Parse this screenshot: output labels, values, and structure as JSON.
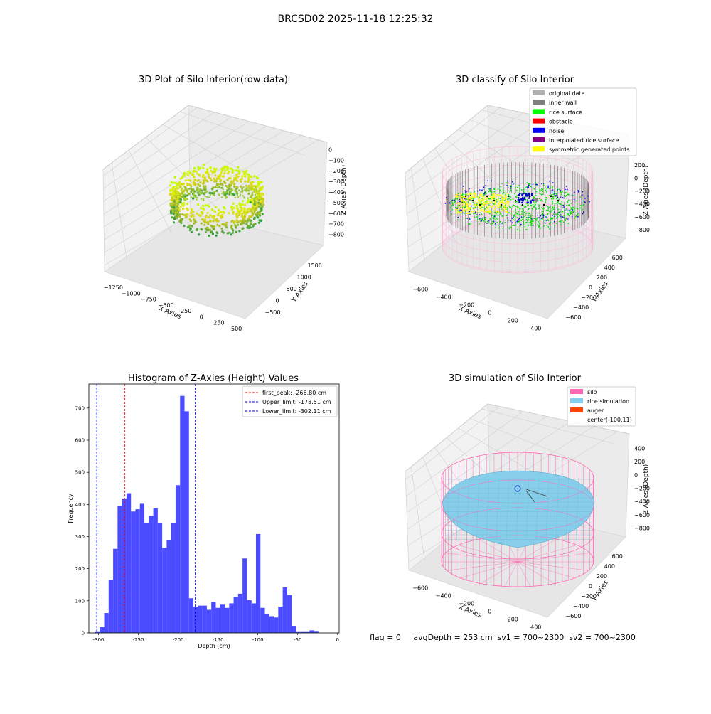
{
  "figure": {
    "suptitle": "BRCSD02 2025-11-18 12:25:32",
    "status_line": "flag = 0     avgDepth = 253 cm  sv1 = 700~2300  sv2 = 700~2300"
  },
  "colors": {
    "hist_bar": "#4b4bff",
    "first_peak_line": "#ff0000",
    "limit_line": "#0000ff",
    "pane": "#f2f2f2",
    "grid": "#c8c8c8",
    "silo": "#ff69b4",
    "rice": "#87ceeb"
  },
  "chart_data": [
    {
      "id": "raw3d",
      "type": "scatter",
      "title": "3D Plot of Silo Interior(row data)",
      "xlabel": "X Axies",
      "ylabel": "Y Axies",
      "zlabel": "Z Axies (Depth)",
      "xticks": [
        "−1250",
        "−1000",
        "−750",
        "−500",
        "−250",
        "0",
        "250",
        "500"
      ],
      "yticks": [
        "−500",
        "0",
        "500",
        "1000",
        "1500"
      ],
      "zticks": [
        "0",
        "−100",
        "−200",
        "−300",
        "−400",
        "−500",
        "−600",
        "−700",
        "−800"
      ],
      "xlim": [
        -1300,
        550
      ],
      "ylim": [
        -600,
        1700
      ],
      "zlim": [
        -850,
        50
      ]
    },
    {
      "id": "classify3d",
      "type": "scatter",
      "title": "3D classify of Silo Interior",
      "xlabel": "X Axies",
      "ylabel": "Y Axies",
      "zlabel": "Z Axies (Depth)",
      "xticks": [
        "−600",
        "−400",
        "−200",
        "0",
        "200",
        "400"
      ],
      "yticks": [
        "−600",
        "−400",
        "−200",
        "0",
        "200",
        "400",
        "600"
      ],
      "zticks": [
        "200",
        "0",
        "−200",
        "−400",
        "−600",
        "−800"
      ],
      "legend": [
        {
          "label": "original data",
          "color": "#b0b0b0"
        },
        {
          "label": "inner wall",
          "color": "#808080"
        },
        {
          "label": "rice surface",
          "color": "#00ff00"
        },
        {
          "label": "obstacle",
          "color": "#ff0000"
        },
        {
          "label": "noise",
          "color": "#0000ff"
        },
        {
          "label": "interpolated rice surface",
          "color": "#800080"
        },
        {
          "label": "symmetric generated points",
          "color": "#ffff00"
        }
      ]
    },
    {
      "id": "histogram",
      "type": "bar",
      "title": "Histogram of Z-Axies (Height) Values",
      "xlabel": "Depth (cm)",
      "ylabel": "Frequency",
      "xlim": [
        -312,
        2
      ],
      "ylim": [
        0,
        775
      ],
      "xticks": [
        -300,
        -250,
        -200,
        -150,
        -100,
        -50,
        0
      ],
      "yticks": [
        0,
        100,
        200,
        300,
        400,
        500,
        600,
        700
      ],
      "bin_width": 5.6,
      "bin_start": -304,
      "values": [
        5,
        18,
        62,
        165,
        262,
        395,
        418,
        435,
        378,
        385,
        402,
        342,
        365,
        388,
        342,
        265,
        288,
        342,
        460,
        738,
        690,
        108,
        82,
        85,
        85,
        72,
        97,
        78,
        88,
        78,
        92,
        112,
        122,
        232,
        102,
        92,
        308,
        78,
        58,
        52,
        48,
        82,
        142,
        118,
        22,
        5,
        5,
        5,
        8,
        6
      ],
      "lines": [
        {
          "label": "first_peak: -266.80 cm",
          "x": -266.8,
          "color": "#ff0000"
        },
        {
          "label": "Upper_limit: -178.51 cm",
          "x": -178.51,
          "color": "#0000ff"
        },
        {
          "label": "Lower_limit: -302.11 cm",
          "x": -302.11,
          "color": "#0000ff"
        }
      ]
    },
    {
      "id": "simulation3d",
      "type": "scatter",
      "title": "3D simulation of Silo Interior",
      "xlabel": "X Axies",
      "ylabel": "Y Axies",
      "zlabel": "Z Axies (Depth)",
      "xticks": [
        "−600",
        "−400",
        "−200",
        "0",
        "200",
        "400"
      ],
      "yticks": [
        "−600",
        "−400",
        "−200",
        "0",
        "200",
        "400",
        "600"
      ],
      "zticks": [
        "400",
        "200",
        "0",
        "−200",
        "−400",
        "−600",
        "−800"
      ],
      "legend": [
        {
          "label": "silo",
          "color": "#ff69b4"
        },
        {
          "label": "rice simulation",
          "color": "#87ceeb"
        },
        {
          "label": "auger",
          "color": "#ff4500"
        },
        {
          "label": "center(-100,11)",
          "color": ""
        }
      ]
    }
  ]
}
